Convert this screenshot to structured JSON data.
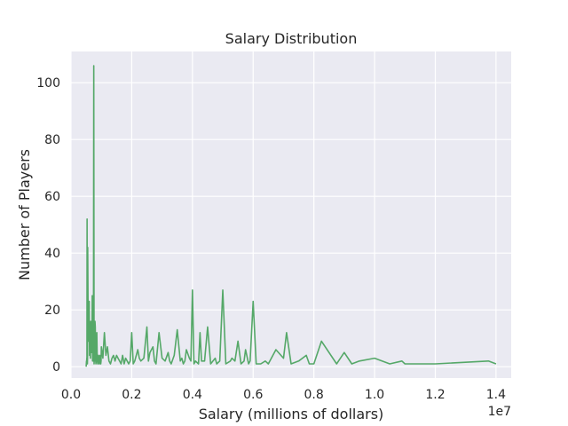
{
  "chart_data": {
    "type": "line",
    "title": "Salary Distribution",
    "xlabel": "Salary (millions of dollars)",
    "ylabel": "Number of Players",
    "x_offset_label": "1e7",
    "xlim": [
      0,
      14500000
    ],
    "ylim": [
      -4,
      111
    ],
    "x_ticks": [
      0,
      2000000,
      4000000,
      6000000,
      8000000,
      10000000,
      12000000,
      14000000
    ],
    "x_tick_labels": [
      "0.0",
      "0.2",
      "0.4",
      "0.6",
      "0.8",
      "1.0",
      "1.2",
      "1.4"
    ],
    "y_ticks": [
      0,
      20,
      40,
      60,
      80,
      100
    ],
    "y_tick_labels": [
      "0",
      "20",
      "40",
      "60",
      "80",
      "100"
    ],
    "grid": true,
    "background": "#eaeaf2",
    "line_color": "#55a868",
    "series": [
      {
        "x": [
          500000,
          505000,
          510000,
          515000,
          520000,
          525000,
          530000,
          535000,
          540000,
          545000,
          550000,
          560000,
          570000,
          580000,
          590000,
          600000,
          610000,
          620000,
          630000,
          640000,
          650000,
          660000,
          670000,
          680000,
          690000,
          700000,
          710000,
          720000,
          730000,
          740000,
          750000,
          760000,
          770000,
          780000,
          790000,
          800000,
          810000,
          820000,
          830000,
          840000,
          850000,
          860000,
          870000,
          880000,
          890000,
          900000,
          910000,
          920000,
          930000,
          940000,
          950000,
          960000,
          970000,
          980000,
          990000,
          1000000,
          1050000,
          1100000,
          1150000,
          1200000,
          1250000,
          1300000,
          1350000,
          1400000,
          1450000,
          1500000,
          1550000,
          1600000,
          1650000,
          1700000,
          1750000,
          1800000,
          1850000,
          1900000,
          1950000,
          2000000,
          2050000,
          2100000,
          2200000,
          2250000,
          2300000,
          2400000,
          2500000,
          2550000,
          2600000,
          2700000,
          2750000,
          2800000,
          2900000,
          3000000,
          3100000,
          3200000,
          3250000,
          3300000,
          3400000,
          3500000,
          3600000,
          3650000,
          3700000,
          3750000,
          3800000,
          3900000,
          3950000,
          4000000,
          4050000,
          4100000,
          4200000,
          4250000,
          4300000,
          4400000,
          4500000,
          4600000,
          4750000,
          4800000,
          4900000,
          5000000,
          5100000,
          5250000,
          5300000,
          5400000,
          5500000,
          5600000,
          5700000,
          5750000,
          5850000,
          5900000,
          6000000,
          6100000,
          6250000,
          6400000,
          6500000,
          6750000,
          7000000,
          7100000,
          7250000,
          7500000,
          7750000,
          7850000,
          8000000,
          8250000,
          8750000,
          9000000,
          9250000,
          9500000,
          10000000,
          10500000,
          10900000,
          11000000,
          12000000,
          13750000,
          14000000
        ],
        "y": [
          0,
          1,
          2,
          1,
          3,
          2,
          52,
          2,
          1,
          3,
          42,
          24,
          15,
          9,
          14,
          23,
          4,
          14,
          10,
          3,
          16,
          7,
          5,
          12,
          8,
          25,
          2,
          3,
          4,
          2,
          106,
          1,
          3,
          2,
          16,
          14,
          3,
          1,
          2,
          2,
          12,
          5,
          2,
          1,
          3,
          4,
          1,
          3,
          2,
          2,
          4,
          1,
          2,
          1,
          2,
          7,
          3,
          12,
          4,
          7,
          2,
          1,
          3,
          4,
          2,
          4,
          3,
          2,
          1,
          4,
          1,
          3,
          2,
          1,
          2,
          12,
          1,
          2,
          6,
          3,
          2,
          3,
          14,
          2,
          5,
          7,
          2,
          1,
          12,
          3,
          2,
          5,
          2,
          1,
          4,
          13,
          2,
          3,
          1,
          2,
          6,
          3,
          2,
          27,
          1,
          2,
          1,
          12,
          2,
          2,
          14,
          1,
          3,
          1,
          2,
          27,
          1,
          2,
          3,
          2,
          9,
          1,
          2,
          6,
          1,
          2,
          23,
          1,
          1,
          2,
          1,
          6,
          3,
          12,
          1,
          2,
          4,
          1,
          1,
          9,
          1,
          5,
          1,
          2,
          3,
          1,
          2,
          1,
          1,
          2,
          1
        ]
      }
    ]
  }
}
